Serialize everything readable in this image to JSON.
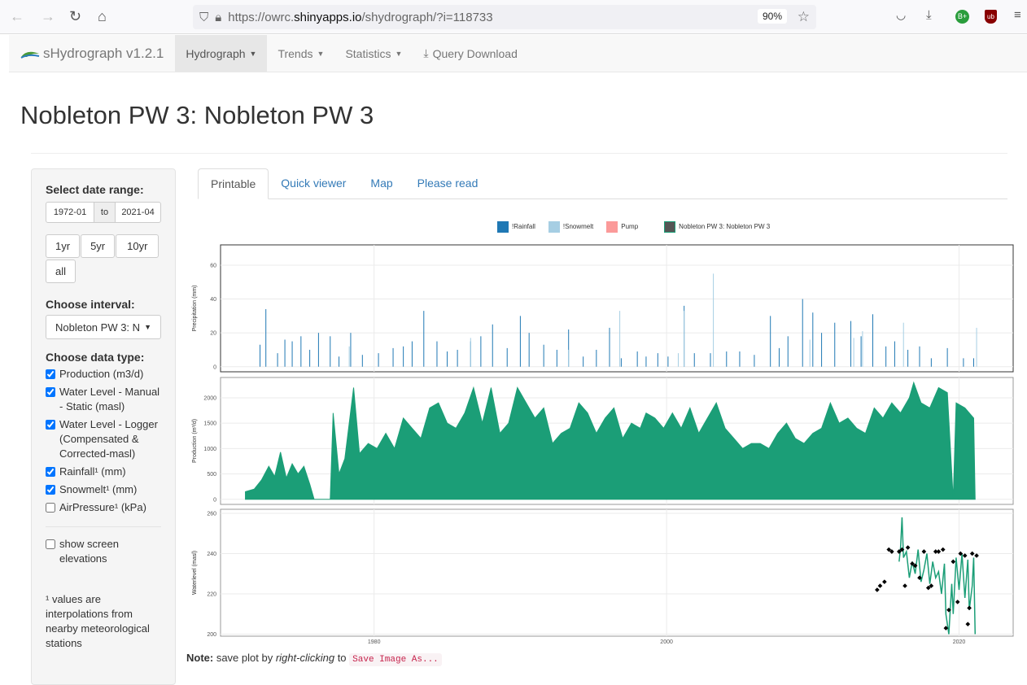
{
  "browser": {
    "url_prefix": "https://owrc.",
    "url_host": "shinyapps.io",
    "url_path": "/shydrograph/?i=118733",
    "zoom": "90%",
    "icons": [
      "back-icon",
      "forward-icon",
      "reload-icon",
      "home-icon",
      "shield-icon",
      "lock-icon",
      "star-icon",
      "pocket-icon",
      "download-icon",
      "extension-icon",
      "ublock-icon",
      "menu-icon"
    ]
  },
  "navbar": {
    "brand": "sHydrograph v1.2.1",
    "items": [
      {
        "label": "Hydrograph",
        "dropdown": true,
        "active": true
      },
      {
        "label": "Trends",
        "dropdown": true
      },
      {
        "label": "Statistics",
        "dropdown": true
      },
      {
        "label": "Query Download",
        "icon": "download-icon"
      }
    ]
  },
  "title": "Nobleton PW 3: Nobleton PW 3",
  "sidebar": {
    "date_label": "Select date range:",
    "date_start": "1972-01",
    "date_sep": "to",
    "date_end": "2021-04",
    "range_buttons": [
      "1yr",
      "5yr",
      "10yr",
      "all"
    ],
    "interval_label": "Choose interval:",
    "interval_value": "Nobleton PW 3: Nobleton PW 3",
    "datatype_label": "Choose data type:",
    "datatypes": [
      {
        "label": "Production (m3/d)",
        "checked": true
      },
      {
        "label": "Water Level - Manual - Static (masl)",
        "checked": true
      },
      {
        "label": "Water Level - Logger (Compensated & Corrected-masl)",
        "checked": true
      },
      {
        "label": "Rainfall¹ (mm)",
        "checked": true
      },
      {
        "label": "Snowmelt¹ (mm)",
        "checked": true
      },
      {
        "label": "AirPressure¹ (kPa)",
        "checked": false
      }
    ],
    "screen_label": "show screen elevations",
    "screen_checked": false,
    "footnote": "¹ values are interpolations from nearby meteorological stations"
  },
  "tabs": [
    {
      "label": "Printable",
      "active": true
    },
    {
      "label": "Quick viewer"
    },
    {
      "label": "Map"
    },
    {
      "label": "Please read"
    }
  ],
  "note": {
    "bold": "Note:",
    "t1": " save plot by ",
    "em": "right-clicking",
    "t2": " to ",
    "code": "Save Image As..."
  },
  "chart_data": {
    "type": "multi-panel time series",
    "legend": [
      {
        "name": "!Rainfall",
        "color": "#1f78b4"
      },
      {
        "name": "!Snowmelt",
        "color": "#a6cee3"
      },
      {
        "name": "Pump",
        "color": "#fb9a99"
      },
      {
        "name": "Nobleton PW 3: Nobleton PW 3",
        "color": "#555555",
        "border": "#1b9e77"
      }
    ],
    "legend_position": "top",
    "xlim": [
      1969.5,
      2023.7
    ],
    "xticks": [
      1980,
      2000,
      2020
    ],
    "panels": [
      {
        "ylabel": "Precipitation (mm)",
        "ylim": [
          -3,
          72
        ],
        "yticks": [
          0,
          20,
          40,
          60
        ],
        "type": "bar",
        "rainfall": [
          [
            1972.2,
            13
          ],
          [
            1972.6,
            34
          ],
          [
            1973.4,
            8
          ],
          [
            1973.9,
            16
          ],
          [
            1974.4,
            15
          ],
          [
            1975.0,
            18
          ],
          [
            1975.6,
            10
          ],
          [
            1976.2,
            20
          ],
          [
            1977.0,
            18
          ],
          [
            1977.6,
            6
          ],
          [
            1978.4,
            20
          ],
          [
            1979.2,
            7
          ],
          [
            1980.3,
            8
          ],
          [
            1981.3,
            11
          ],
          [
            1982.0,
            12
          ],
          [
            1982.6,
            15
          ],
          [
            1983.4,
            33
          ],
          [
            1984.3,
            15
          ],
          [
            1985.0,
            9
          ],
          [
            1985.7,
            10
          ],
          [
            1986.6,
            15
          ],
          [
            1987.3,
            18
          ],
          [
            1988.1,
            25
          ],
          [
            1989.1,
            11
          ],
          [
            1990.0,
            30
          ],
          [
            1990.6,
            20
          ],
          [
            1991.6,
            13
          ],
          [
            1992.5,
            10
          ],
          [
            1993.3,
            22
          ],
          [
            1994.3,
            6
          ],
          [
            1995.2,
            10
          ],
          [
            1996.1,
            23
          ],
          [
            1996.9,
            5
          ],
          [
            1998.0,
            9
          ],
          [
            1998.6,
            6
          ],
          [
            1999.4,
            8
          ],
          [
            2000.1,
            6
          ],
          [
            2001.2,
            36
          ],
          [
            2001.9,
            8
          ],
          [
            2003.0,
            8
          ],
          [
            2004.1,
            9
          ],
          [
            2005.0,
            9
          ],
          [
            2006.0,
            7
          ],
          [
            2007.1,
            30
          ],
          [
            2007.7,
            11
          ],
          [
            2008.3,
            18
          ],
          [
            2009.3,
            40
          ],
          [
            2010.0,
            32
          ],
          [
            2010.6,
            20
          ],
          [
            2011.5,
            26
          ],
          [
            2012.6,
            27
          ],
          [
            2013.3,
            18
          ],
          [
            2014.1,
            31
          ],
          [
            2015.0,
            12
          ],
          [
            2015.6,
            15
          ],
          [
            2016.5,
            10
          ],
          [
            2017.3,
            12
          ],
          [
            2018.1,
            5
          ],
          [
            2019.2,
            11
          ],
          [
            2020.3,
            5
          ],
          [
            2021.0,
            5
          ]
        ],
        "snowmelt": [
          [
            1978.3,
            12
          ],
          [
            1986.6,
            17
          ],
          [
            1993.3,
            10
          ],
          [
            1996.8,
            33
          ],
          [
            2000.8,
            8
          ],
          [
            2001.2,
            33
          ],
          [
            2003.2,
            55
          ],
          [
            2009.8,
            16
          ],
          [
            2012.8,
            17
          ],
          [
            2013.4,
            21
          ],
          [
            2016.2,
            26
          ],
          [
            2021.2,
            23
          ]
        ]
      },
      {
        "ylabel": "Production (m³/d)",
        "ylim": [
          -100,
          2400
        ],
        "yticks": [
          0,
          500,
          1000,
          1500,
          2000
        ],
        "type": "area",
        "color": "#1b9e77",
        "values": [
          [
            1971.2,
            150
          ],
          [
            1971.8,
            200
          ],
          [
            1972.3,
            380
          ],
          [
            1972.8,
            650
          ],
          [
            1973.2,
            450
          ],
          [
            1973.6,
            930
          ],
          [
            1974.0,
            420
          ],
          [
            1974.4,
            700
          ],
          [
            1974.8,
            500
          ],
          [
            1975.2,
            650
          ],
          [
            1975.6,
            300
          ],
          [
            1975.9,
            0
          ],
          [
            1977.0,
            0
          ],
          [
            1977.2,
            1700
          ],
          [
            1977.6,
            500
          ],
          [
            1978.0,
            800
          ],
          [
            1978.6,
            2200
          ],
          [
            1979.0,
            900
          ],
          [
            1979.6,
            1100
          ],
          [
            1980.2,
            1000
          ],
          [
            1980.8,
            1300
          ],
          [
            1981.4,
            1000
          ],
          [
            1982.0,
            1600
          ],
          [
            1982.6,
            1400
          ],
          [
            1983.2,
            1200
          ],
          [
            1983.8,
            1800
          ],
          [
            1984.4,
            1900
          ],
          [
            1985.0,
            1500
          ],
          [
            1985.6,
            1400
          ],
          [
            1986.2,
            1700
          ],
          [
            1986.8,
            2200
          ],
          [
            1987.4,
            1500
          ],
          [
            1988.0,
            2200
          ],
          [
            1988.6,
            1300
          ],
          [
            1989.2,
            1500
          ],
          [
            1989.8,
            2200
          ],
          [
            1990.4,
            1900
          ],
          [
            1991.0,
            1600
          ],
          [
            1991.6,
            1800
          ],
          [
            1992.2,
            1100
          ],
          [
            1992.8,
            1300
          ],
          [
            1993.4,
            1400
          ],
          [
            1994.0,
            1900
          ],
          [
            1994.6,
            1700
          ],
          [
            1995.2,
            1300
          ],
          [
            1995.8,
            1600
          ],
          [
            1996.4,
            1800
          ],
          [
            1997.0,
            1200
          ],
          [
            1997.6,
            1500
          ],
          [
            1998.2,
            1400
          ],
          [
            1998.6,
            1700
          ],
          [
            1999.2,
            1600
          ],
          [
            1999.8,
            1400
          ],
          [
            2000.4,
            1700
          ],
          [
            2001.0,
            1400
          ],
          [
            2001.6,
            1800
          ],
          [
            2002.2,
            1300
          ],
          [
            2002.8,
            1600
          ],
          [
            2003.4,
            1900
          ],
          [
            2004.0,
            1400
          ],
          [
            2004.6,
            1200
          ],
          [
            2005.2,
            1000
          ],
          [
            2005.8,
            1100
          ],
          [
            2006.4,
            1100
          ],
          [
            2007.0,
            1000
          ],
          [
            2007.6,
            1300
          ],
          [
            2008.2,
            1500
          ],
          [
            2008.8,
            1200
          ],
          [
            2009.4,
            1100
          ],
          [
            2010.0,
            1300
          ],
          [
            2010.6,
            1400
          ],
          [
            2011.2,
            1900
          ],
          [
            2011.8,
            1500
          ],
          [
            2012.4,
            1600
          ],
          [
            2013.0,
            1400
          ],
          [
            2013.6,
            1300
          ],
          [
            2014.2,
            1800
          ],
          [
            2014.8,
            1600
          ],
          [
            2015.4,
            1900
          ],
          [
            2016.0,
            1700
          ],
          [
            2016.6,
            2000
          ],
          [
            2016.9,
            2300
          ],
          [
            2017.4,
            1900
          ],
          [
            2018.0,
            1800
          ],
          [
            2018.6,
            2200
          ],
          [
            2019.2,
            2100
          ],
          [
            2019.6,
            0
          ],
          [
            2019.8,
            1900
          ],
          [
            2020.4,
            1800
          ],
          [
            2021.0,
            1600
          ],
          [
            2021.1,
            0
          ]
        ]
      },
      {
        "ylabel": "Waterlevel (masl)",
        "ylim": [
          199,
          262
        ],
        "yticks": [
          200,
          220,
          240,
          260
        ],
        "type": "line+points",
        "color": "#1b9e77",
        "logger": [
          [
            2015.9,
            236
          ],
          [
            2016.0,
            243
          ],
          [
            2016.1,
            258
          ],
          [
            2016.2,
            238
          ],
          [
            2016.4,
            241
          ],
          [
            2016.6,
            228
          ],
          [
            2016.8,
            236
          ],
          [
            2017.0,
            230
          ],
          [
            2017.2,
            242
          ],
          [
            2017.4,
            226
          ],
          [
            2017.6,
            232
          ],
          [
            2017.8,
            240
          ],
          [
            2018.0,
            225
          ],
          [
            2018.2,
            236
          ],
          [
            2018.4,
            228
          ],
          [
            2018.6,
            231
          ],
          [
            2018.8,
            220
          ],
          [
            2019.0,
            235
          ],
          [
            2019.1,
            210
          ],
          [
            2019.3,
            200
          ],
          [
            2019.5,
            225
          ],
          [
            2019.6,
            210
          ],
          [
            2019.8,
            238
          ],
          [
            2020.0,
            222
          ],
          [
            2020.2,
            240
          ],
          [
            2020.4,
            218
          ],
          [
            2020.6,
            237
          ],
          [
            2020.7,
            212
          ],
          [
            2020.9,
            224
          ],
          [
            2021.0,
            238
          ],
          [
            2021.1,
            200
          ]
        ],
        "manual": [
          [
            2014.4,
            222
          ],
          [
            2014.6,
            224
          ],
          [
            2014.9,
            226
          ],
          [
            2015.2,
            242
          ],
          [
            2015.4,
            241
          ],
          [
            2015.9,
            241
          ],
          [
            2016.1,
            242
          ],
          [
            2016.3,
            224
          ],
          [
            2016.5,
            243
          ],
          [
            2016.8,
            235
          ],
          [
            2017.0,
            234
          ],
          [
            2017.3,
            228
          ],
          [
            2017.6,
            241
          ],
          [
            2017.9,
            223
          ],
          [
            2018.1,
            224
          ],
          [
            2018.4,
            241
          ],
          [
            2018.6,
            241
          ],
          [
            2018.9,
            242
          ],
          [
            2019.1,
            203
          ],
          [
            2019.3,
            212
          ],
          [
            2019.6,
            236
          ],
          [
            2019.9,
            216
          ],
          [
            2020.1,
            240
          ],
          [
            2020.4,
            239
          ],
          [
            2020.6,
            205
          ],
          [
            2020.7,
            213
          ],
          [
            2020.9,
            240
          ],
          [
            2021.2,
            239
          ]
        ]
      }
    ]
  }
}
